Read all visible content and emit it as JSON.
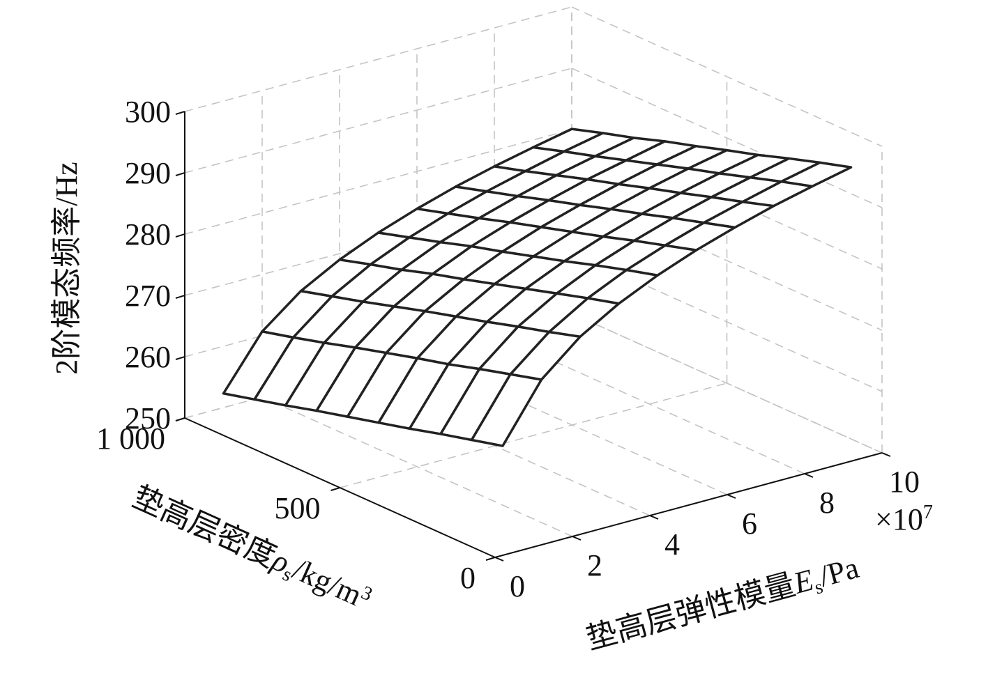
{
  "chart_data": {
    "type": "surface",
    "zlabel": "2阶模态频率/Hz",
    "xlabel": {
      "text": "垫高层弹性模量",
      "symbol": "E",
      "subscript": "s",
      "unit": "/Pa"
    },
    "ylabel": {
      "text": "垫高层密度",
      "symbol": "ρ",
      "subscript": "s",
      "unit": "/kg/m",
      "superscript": "3"
    },
    "x": [
      1,
      2,
      3,
      4,
      5,
      6,
      7,
      8,
      9,
      10
    ],
    "y": [
      100,
      200,
      300,
      400,
      500,
      600,
      700,
      800,
      900,
      1000
    ],
    "z": [
      [
        264.2,
        273.3,
        278.6,
        282.3,
        285.2,
        287.6,
        289.6,
        291.4,
        292.9,
        294.3
      ],
      [
        262.9,
        271.9,
        277.1,
        280.9,
        283.8,
        286.1,
        288.1,
        289.8,
        291.4,
        292.8
      ],
      [
        261.6,
        270.5,
        275.7,
        279.4,
        282.3,
        284.6,
        286.6,
        288.3,
        289.8,
        291.2
      ],
      [
        260.2,
        269.0,
        274.2,
        277.9,
        280.7,
        283.0,
        285.0,
        286.7,
        288.2,
        289.5
      ],
      [
        258.9,
        267.7,
        272.8,
        276.4,
        279.2,
        281.5,
        283.5,
        285.2,
        286.7,
        288.0
      ],
      [
        257.6,
        266.3,
        271.4,
        274.9,
        277.7,
        280.0,
        281.9,
        283.6,
        285.1,
        286.4
      ],
      [
        256.3,
        264.9,
        269.9,
        273.5,
        276.3,
        278.5,
        280.4,
        282.1,
        283.5,
        284.9
      ],
      [
        254.9,
        263.4,
        268.4,
        271.9,
        274.7,
        276.9,
        278.8,
        280.5,
        281.9,
        283.2
      ],
      [
        253.6,
        262.0,
        267.0,
        270.5,
        273.2,
        275.4,
        277.3,
        278.9,
        280.4,
        281.7
      ],
      [
        252.3,
        260.7,
        265.6,
        269.0,
        271.7,
        273.9,
        275.8,
        277.4,
        278.8,
        280.1
      ]
    ],
    "xlim": [
      0,
      10
    ],
    "xticks": [
      0,
      2,
      4,
      6,
      8,
      10
    ],
    "x_multiplier": {
      "base": "×10",
      "exponent": "7"
    },
    "ylim": [
      0,
      1000
    ],
    "yticks": [
      0,
      500,
      {
        "value": 1000,
        "label": "1 000"
      }
    ],
    "zlim": [
      250,
      300
    ],
    "zticks": [
      250,
      260,
      270,
      280,
      290,
      300
    ],
    "grid": true,
    "color": "#222222"
  }
}
